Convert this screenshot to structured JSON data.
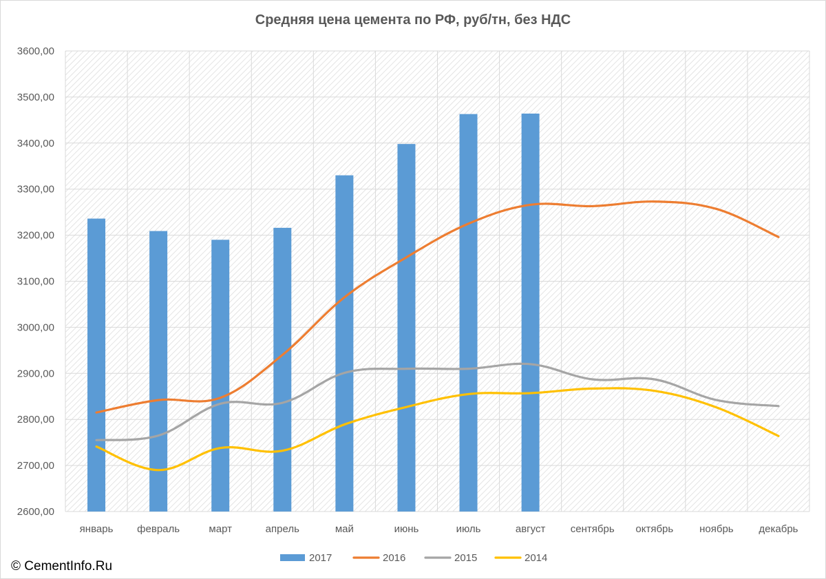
{
  "chart_data": {
    "type": "bar+line",
    "title": "Средняя цена цемента по РФ, руб/тн, без НДС",
    "xlabel": "",
    "ylabel": "",
    "ylim": [
      2600,
      3600
    ],
    "yticks": [
      "2600,00",
      "2700,00",
      "2800,00",
      "2900,00",
      "3000,00",
      "3100,00",
      "3200,00",
      "3300,00",
      "3400,00",
      "3500,00",
      "3600,00"
    ],
    "categories": [
      "январь",
      "февраль",
      "март",
      "апрель",
      "май",
      "июнь",
      "июль",
      "август",
      "сентябрь",
      "октябрь",
      "ноябрь",
      "декабрь"
    ],
    "grid": true,
    "legend_position": "bottom",
    "series": [
      {
        "name": "2017",
        "kind": "bar",
        "color": "#5b9bd5",
        "values": [
          3236,
          3209,
          3190,
          3216,
          3330,
          3398,
          3463,
          3464,
          null,
          null,
          null,
          null
        ]
      },
      {
        "name": "2016",
        "kind": "line",
        "color": "#ed7d31",
        "values": [
          2815,
          2842,
          2847,
          2940,
          3065,
          3152,
          3225,
          3266,
          3263,
          3273,
          3257,
          3196
        ]
      },
      {
        "name": "2015",
        "kind": "line",
        "color": "#a5a5a5",
        "values": [
          2755,
          2765,
          2834,
          2836,
          2901,
          2910,
          2910,
          2920,
          2887,
          2887,
          2842,
          2829
        ]
      },
      {
        "name": "2014",
        "kind": "line",
        "color": "#ffc000",
        "values": [
          2741,
          2690,
          2738,
          2732,
          2789,
          2827,
          2855,
          2857,
          2867,
          2862,
          2826,
          2764
        ]
      }
    ]
  },
  "credit": "© CementInfo.Ru"
}
